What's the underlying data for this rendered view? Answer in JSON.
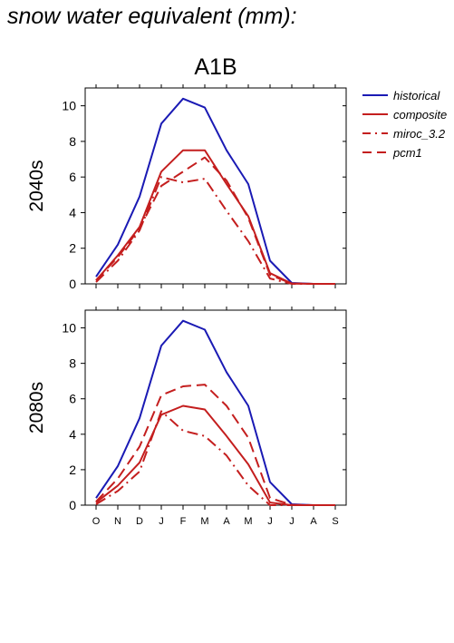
{
  "figure": {
    "title": "snow water equivalent (mm):"
  },
  "chart_data": [
    {
      "type": "line",
      "title": "A1B",
      "ylabel": "2040s",
      "xlabel": "",
      "categories": [
        "O",
        "N",
        "D",
        "J",
        "F",
        "M",
        "A",
        "M",
        "J",
        "J",
        "A",
        "S"
      ],
      "ylim": [
        0,
        11
      ],
      "yticks": [
        0,
        2,
        4,
        6,
        8,
        10
      ],
      "show_x_tick_labels": false,
      "legend": "right",
      "series": [
        {
          "name": "historical",
          "color": "#1a1ab4",
          "dash": "solid",
          "values": [
            0.4,
            2.2,
            4.9,
            9.0,
            10.4,
            9.9,
            7.5,
            5.6,
            1.3,
            0.05,
            0.0,
            0.0
          ]
        },
        {
          "name": "composite",
          "color": "#c41e1e",
          "dash": "solid",
          "values": [
            0.2,
            1.6,
            3.2,
            6.3,
            7.5,
            7.5,
            5.6,
            3.8,
            0.6,
            0.02,
            0.0,
            0.0
          ]
        },
        {
          "name": "miroc_3.2",
          "color": "#c41e1e",
          "dash": "dashdot",
          "values": [
            0.1,
            1.3,
            3.0,
            6.0,
            5.7,
            5.9,
            4.1,
            2.4,
            0.3,
            0.0,
            0.0,
            0.0
          ]
        },
        {
          "name": "pcm1",
          "color": "#c41e1e",
          "dash": "dash",
          "values": [
            0.2,
            1.5,
            3.1,
            5.5,
            6.3,
            7.1,
            5.8,
            3.7,
            0.5,
            0.02,
            0.0,
            0.0
          ]
        }
      ]
    },
    {
      "type": "line",
      "title": "",
      "ylabel": "2080s",
      "xlabel": "",
      "categories": [
        "O",
        "N",
        "D",
        "J",
        "F",
        "M",
        "A",
        "M",
        "J",
        "J",
        "A",
        "S"
      ],
      "ylim": [
        0,
        11
      ],
      "yticks": [
        0,
        2,
        4,
        6,
        8,
        10
      ],
      "show_x_tick_labels": true,
      "series": [
        {
          "name": "historical",
          "color": "#1a1ab4",
          "dash": "solid",
          "values": [
            0.4,
            2.2,
            4.9,
            9.0,
            10.4,
            9.9,
            7.5,
            5.6,
            1.3,
            0.05,
            0.0,
            0.0
          ]
        },
        {
          "name": "composite",
          "color": "#c41e1e",
          "dash": "solid",
          "values": [
            0.15,
            1.1,
            2.4,
            5.1,
            5.6,
            5.4,
            3.9,
            2.3,
            0.15,
            0.0,
            0.0,
            0.0
          ]
        },
        {
          "name": "miroc_3.2",
          "color": "#c41e1e",
          "dash": "dashdot",
          "values": [
            0.05,
            0.8,
            1.9,
            5.3,
            4.2,
            3.9,
            2.8,
            1.1,
            0.0,
            0.0,
            0.0,
            0.0
          ]
        },
        {
          "name": "pcm1",
          "color": "#c41e1e",
          "dash": "dash",
          "values": [
            0.2,
            1.5,
            3.3,
            6.2,
            6.7,
            6.8,
            5.6,
            3.8,
            0.4,
            0.02,
            0.0,
            0.0
          ]
        }
      ]
    }
  ]
}
